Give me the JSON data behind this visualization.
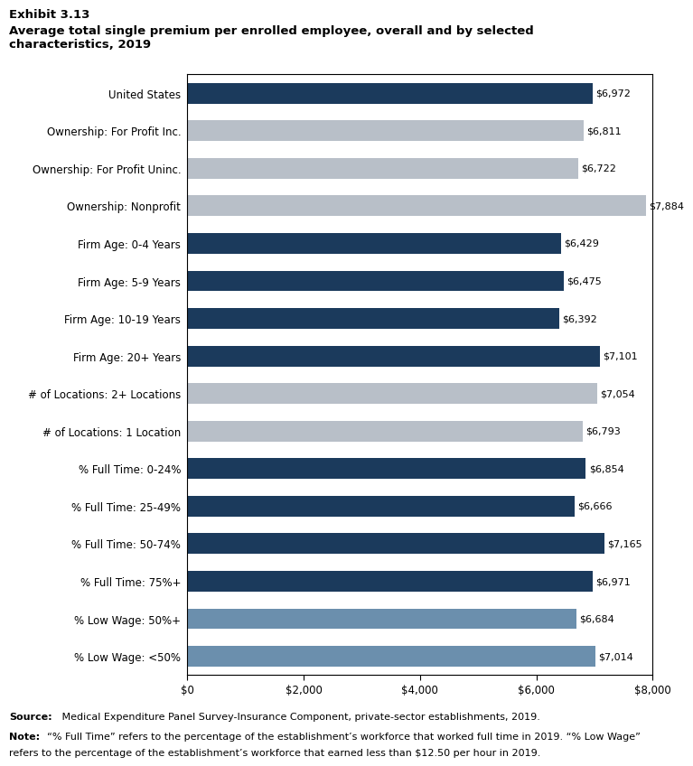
{
  "title_line1": "Exhibit 3.13",
  "title_line2": "Average total single premium per enrolled employee, overall and by selected\ncharacteristics, 2019",
  "categories": [
    "United States",
    "Ownership: For Profit Inc.",
    "Ownership: For Profit Uninc.",
    "Ownership: Nonprofit",
    "Firm Age: 0-4 Years",
    "Firm Age: 5-9 Years",
    "Firm Age: 10-19 Years",
    "Firm Age: 20+ Years",
    "# of Locations: 2+ Locations",
    "# of Locations: 1 Location",
    "% Full Time: 0-24%",
    "% Full Time: 25-49%",
    "% Full Time: 50-74%",
    "% Full Time: 75%+",
    "% Low Wage: 50%+",
    "% Low Wage: <50%"
  ],
  "values": [
    6972,
    6811,
    6722,
    7884,
    6429,
    6475,
    6392,
    7101,
    7054,
    6793,
    6854,
    6666,
    7165,
    6971,
    6684,
    7014
  ],
  "bar_colors": [
    "#1b3a5c",
    "#b8bfc8",
    "#b8bfc8",
    "#b8bfc8",
    "#1b3a5c",
    "#1b3a5c",
    "#1b3a5c",
    "#1b3a5c",
    "#b8bfc8",
    "#b8bfc8",
    "#1b3a5c",
    "#1b3a5c",
    "#1b3a5c",
    "#1b3a5c",
    "#6b8fad",
    "#6b8fad"
  ],
  "xlim": [
    0,
    8000
  ],
  "xticks": [
    0,
    2000,
    4000,
    6000,
    8000
  ],
  "xticklabels": [
    "$0",
    "$2,000",
    "$4,000",
    "$6,000",
    "$8,000"
  ],
  "source_bold": "Source:",
  "source_rest": " Medical Expenditure Panel Survey-Insurance Component, private-sector establishments, 2019.",
  "note_bold": "Note:",
  "note_rest": " “% Full Time” refers to the percentage of the establishment’s workforce that worked full time in 2019. “% Low Wage” refers to the percentage of the establishment’s workforce that earned less than $12.50 per hour in 2019.",
  "background_color": "#ffffff",
  "bar_height": 0.55
}
